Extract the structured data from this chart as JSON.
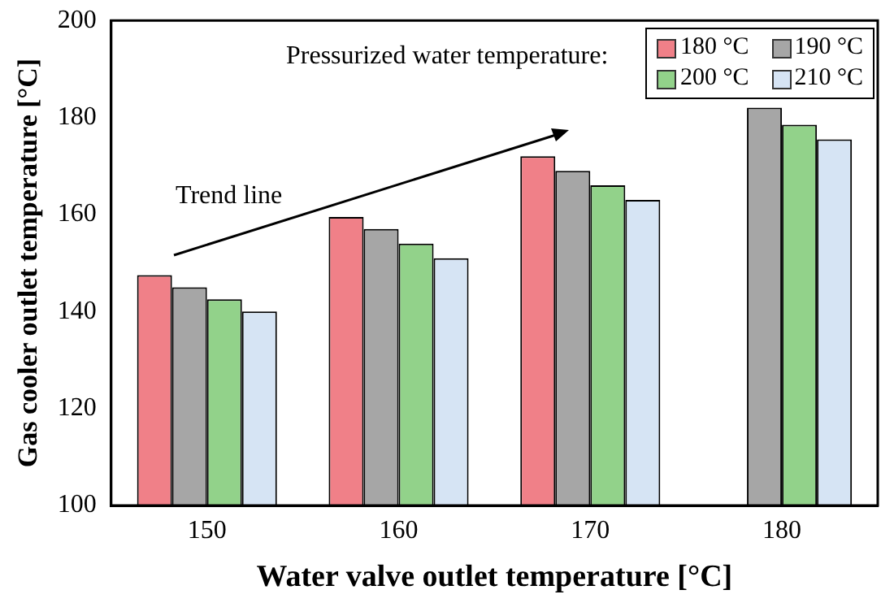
{
  "chart_data": {
    "type": "bar",
    "xlabel": "Water valve outlet temperature [°C]",
    "ylabel": "Gas cooler outlet temperature [°C]",
    "legend_title": "Pressurized water temperature:",
    "annotations": [
      "Trend line"
    ],
    "categories": [
      "150",
      "160",
      "170",
      "180"
    ],
    "series": [
      {
        "name": "180 °C",
        "color": "#f08088",
        "values": [
          147.5,
          159.5,
          172,
          null
        ]
      },
      {
        "name": "190 °C",
        "color": "#a6a6a6",
        "values": [
          145,
          157,
          169,
          182
        ]
      },
      {
        "name": "200 °C",
        "color": "#92d28a",
        "values": [
          142.5,
          154,
          166,
          178.5
        ]
      },
      {
        "name": "210 °C",
        "color": "#d6e4f4",
        "values": [
          140,
          151,
          163,
          175.5
        ]
      }
    ],
    "ylim": [
      100,
      200
    ],
    "yticks": [
      100,
      120,
      140,
      160,
      180,
      200
    ],
    "grid": false,
    "legend": "top right"
  }
}
